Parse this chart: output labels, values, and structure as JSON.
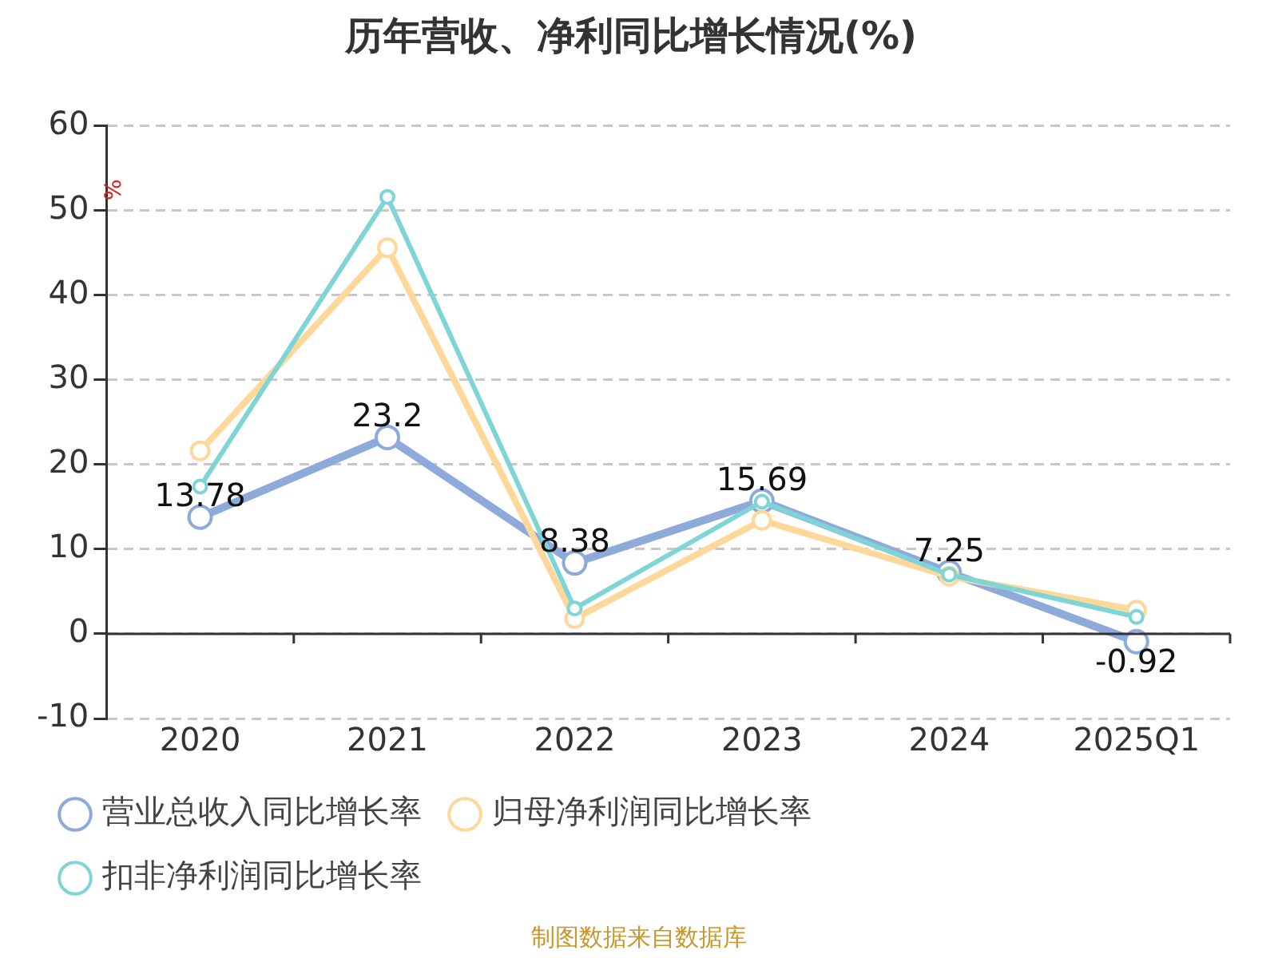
{
  "chart_data": {
    "type": "line",
    "title": "历年营收、净利同比增长情况(%)",
    "ylabel": "%",
    "categories": [
      "2020",
      "2021",
      "2022",
      "2023",
      "2024",
      "2025Q1"
    ],
    "series": [
      {
        "name": "营业总收入同比增长率",
        "color": "#8eaadb",
        "values": [
          13.78,
          23.2,
          8.38,
          15.69,
          7.25,
          -0.92
        ],
        "value_labels": [
          "13.78",
          "23.2",
          "8.38",
          "15.69",
          "7.25",
          "-0.92"
        ]
      },
      {
        "name": "归母净利润同比增长率",
        "color": "#fdd89a",
        "values": [
          21.6,
          45.6,
          1.8,
          13.4,
          6.8,
          2.8
        ]
      },
      {
        "name": "扣非净利润同比增长率",
        "color": "#7fd4d6",
        "values": [
          17.4,
          51.6,
          3.0,
          15.6,
          7.0,
          2.0
        ]
      }
    ],
    "ylim": [
      -10,
      60
    ],
    "yticks": [
      -10,
      0,
      10,
      20,
      30,
      40,
      50,
      60
    ],
    "grid": "y",
    "legend": "bottom",
    "marker": "circle",
    "line_style": "solid",
    "annotations": [
      "制图数据来自数据库"
    ]
  }
}
